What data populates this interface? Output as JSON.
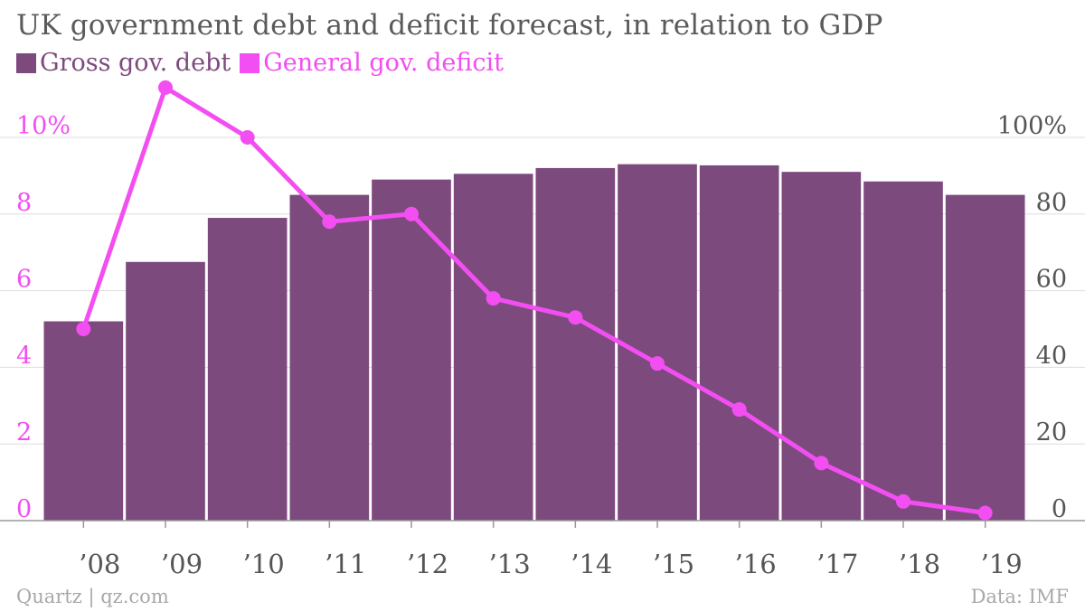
{
  "title": "UK government debt and deficit forecast, in relation to GDP",
  "source_left": "Quartz | qz.com",
  "source_right": "Data: IMF",
  "colors": {
    "debt": "#7d4a7d",
    "deficit": "#f24ef2",
    "grid": "#dddddd",
    "axis_text": "#555555",
    "left_axis_text": "#f24ef2"
  },
  "chart_data": {
    "type": "bar",
    "categories": [
      "’08",
      "’09",
      "’10",
      "’11",
      "’12",
      "’13",
      "’14",
      "’15",
      "’16",
      "’17",
      "’18",
      "’19"
    ],
    "series": [
      {
        "name": "Gross gov. debt",
        "type": "bar",
        "axis": "right",
        "values": [
          52,
          67.5,
          79,
          85,
          89,
          90.5,
          92,
          93,
          92.7,
          91,
          88.5,
          85
        ]
      },
      {
        "name": "General gov. deficit",
        "type": "line",
        "axis": "left",
        "values": [
          5.0,
          11.3,
          10.0,
          7.8,
          8.0,
          5.8,
          5.3,
          4.1,
          2.9,
          1.5,
          0.5,
          0.2
        ]
      }
    ],
    "left_axis": {
      "ylim": [
        0,
        10
      ],
      "ticks": [
        0,
        2,
        4,
        6,
        8,
        10
      ],
      "tick_labels": [
        "0",
        "2",
        "4",
        "6",
        "8",
        "10%"
      ]
    },
    "right_axis": {
      "ylim": [
        0,
        100
      ],
      "ticks": [
        0,
        20,
        40,
        60,
        80,
        100
      ],
      "tick_labels": [
        "0",
        "20",
        "40",
        "60",
        "80",
        "100%"
      ]
    },
    "grid": true,
    "legend_placement": "top-left"
  }
}
